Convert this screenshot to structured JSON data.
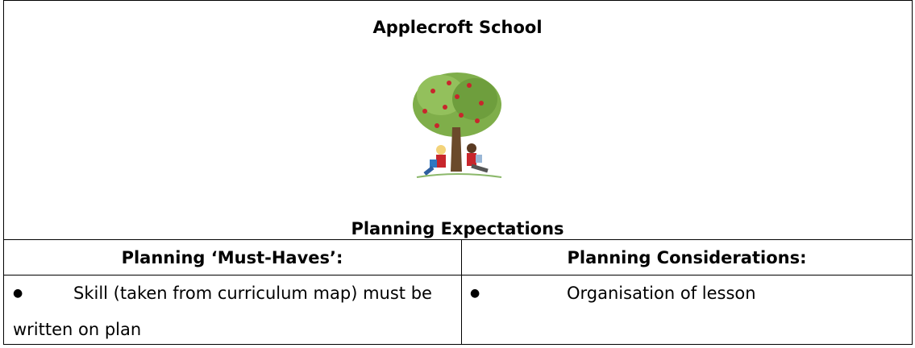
{
  "header": {
    "title": "Applecroft School",
    "subtitle": "Planning Expectations"
  },
  "table": {
    "columns": [
      "Planning ‘Must-Haves’:",
      "Planning Considerations:"
    ],
    "rows": [
      [
        "Skill (taken from curriculum map) must be written on plan",
        "Organisation of lesson"
      ]
    ]
  }
}
